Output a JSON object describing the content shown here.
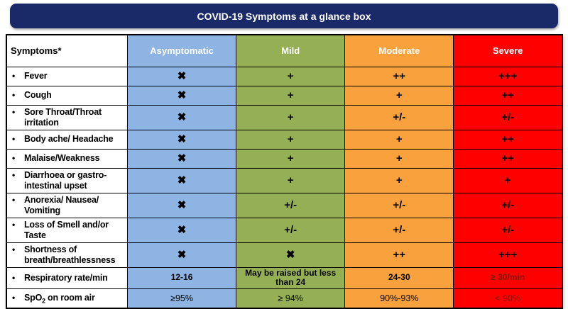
{
  "title": "COVID-19 Symptoms at a glance box",
  "colors": {
    "banner_bg": "#1a2a69",
    "banner_text": "#ffffff",
    "asymptomatic": "#8db4e2",
    "mild": "#95b054",
    "moderate": "#f9a23d",
    "severe": "#fe0000",
    "header_text": "#ffffff",
    "body_text": "#000000",
    "dark_value_text": "#7a1712",
    "border": "#000000"
  },
  "table": {
    "bullet": "•",
    "header": {
      "symptoms_label": "Symptoms*",
      "columns": [
        {
          "label": "Asymptomatic",
          "key": "asymptomatic"
        },
        {
          "label": "Mild",
          "key": "mild"
        },
        {
          "label": "Moderate",
          "key": "moderate"
        },
        {
          "label": "Severe",
          "key": "severe"
        }
      ]
    },
    "rows": [
      {
        "symptom": "Fever",
        "cells": [
          {
            "text": "✖"
          },
          {
            "text": "+"
          },
          {
            "text": "++"
          },
          {
            "text": "+++"
          }
        ]
      },
      {
        "symptom": "Cough",
        "cells": [
          {
            "text": "✖"
          },
          {
            "text": "+"
          },
          {
            "text": "+"
          },
          {
            "text": "++"
          }
        ]
      },
      {
        "symptom": "Sore Throat/Throat irritation",
        "cells": [
          {
            "text": "✖"
          },
          {
            "text": "+"
          },
          {
            "text": "+/-"
          },
          {
            "text": "+/-"
          }
        ]
      },
      {
        "symptom": "Body ache/ Headache",
        "cells": [
          {
            "text": "✖"
          },
          {
            "text": "+"
          },
          {
            "text": "+"
          },
          {
            "text": "++"
          }
        ]
      },
      {
        "symptom": "Malaise/Weakness",
        "cells": [
          {
            "text": "✖"
          },
          {
            "text": "+"
          },
          {
            "text": "+"
          },
          {
            "text": "++"
          }
        ]
      },
      {
        "symptom": "Diarrhoea or gastro-intestinal upset",
        "cells": [
          {
            "text": "✖"
          },
          {
            "text": "+"
          },
          {
            "text": "+"
          },
          {
            "text": "+"
          }
        ]
      },
      {
        "symptom": "Anorexia/ Nausea/ Vomiting",
        "cells": [
          {
            "text": "✖"
          },
          {
            "text": "+/-"
          },
          {
            "text": "+/-"
          },
          {
            "text": "+/-"
          }
        ]
      },
      {
        "symptom": "Loss of Smell and/or Taste",
        "cells": [
          {
            "text": "✖"
          },
          {
            "text": "+/-"
          },
          {
            "text": "+/-"
          },
          {
            "text": "+/-"
          }
        ]
      },
      {
        "symptom": "Shortness of breath/breathlessness",
        "cells": [
          {
            "text": "✖"
          },
          {
            "text": "✖"
          },
          {
            "text": "++"
          },
          {
            "text": "+++"
          }
        ]
      },
      {
        "symptom": "Respiratory rate/min",
        "cells": [
          {
            "text": "12-16",
            "small": true
          },
          {
            "text": "May be raised but less than 24",
            "small": true
          },
          {
            "text": "24-30",
            "small": true
          },
          {
            "text": "≥ 30/min",
            "small": true,
            "dark": true
          }
        ]
      },
      {
        "symptom": "SpO",
        "symptom_sub": "2",
        "symptom_rest": " on room air",
        "cells": [
          {
            "text": "≥95%",
            "small": true,
            "regular": true
          },
          {
            "text": "≥ 94%",
            "small": true,
            "regular": true
          },
          {
            "text": "90%-93%",
            "small": true,
            "regular": true
          },
          {
            "text": "< 90%",
            "small": true,
            "regular": true,
            "dark": true
          }
        ]
      }
    ]
  }
}
